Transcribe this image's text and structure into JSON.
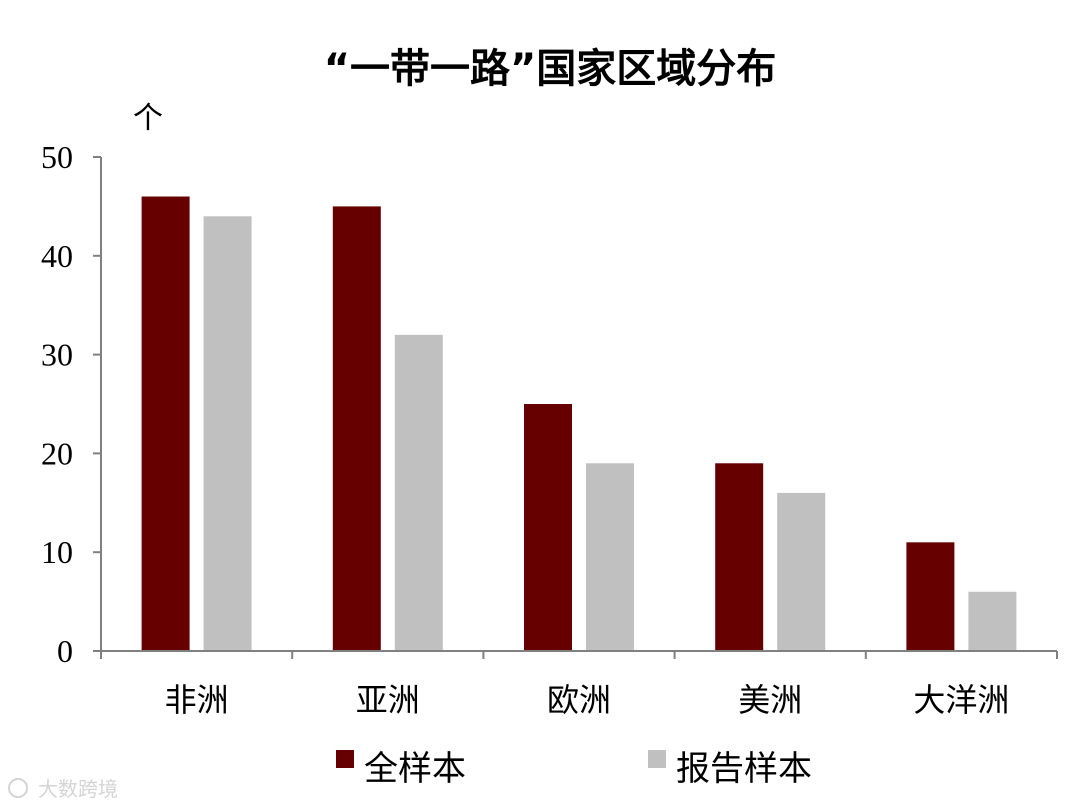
{
  "chart_data": {
    "type": "bar",
    "title": "“一带一路”国家区域分布",
    "ylabel": "个",
    "xlabel": "",
    "categories": [
      "非洲",
      "亚洲",
      "欧洲",
      "美洲",
      "大洋洲"
    ],
    "series": [
      {
        "name": "全样本",
        "values": [
          46,
          45,
          25,
          19,
          11
        ],
        "color": "#660000"
      },
      {
        "name": "报告样本",
        "values": [
          44,
          32,
          19,
          16,
          6
        ],
        "color": "#c0c0c0"
      }
    ],
    "ylim": [
      0,
      50
    ],
    "yticks": [
      "0",
      "10",
      "20",
      "30",
      "40",
      "50"
    ],
    "grid": false,
    "legend_position": "bottom"
  },
  "watermark": "大数跨境"
}
